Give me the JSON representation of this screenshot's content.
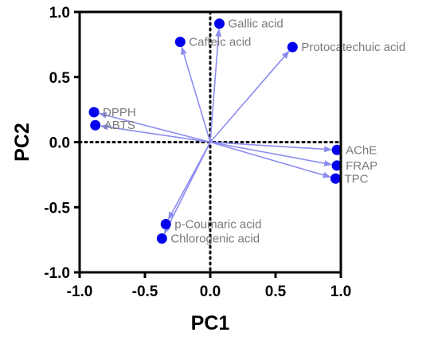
{
  "chart_data": {
    "type": "scatter",
    "title": "",
    "xlabel": "PC1",
    "ylabel": "PC2",
    "xlim": [
      -1.0,
      1.0
    ],
    "ylim": [
      -1.0,
      1.0
    ],
    "xticks": [
      "-1.0",
      "-0.5",
      "0.0",
      "0.5",
      "1.0"
    ],
    "yticks": [
      "1.0",
      "0.5",
      "0.0",
      "-0.5",
      "-1.0"
    ],
    "grid": false,
    "reference_lines": {
      "x": 0,
      "y": 0,
      "style": "dotted"
    },
    "vectors_from_origin": true,
    "point_color": "#0000ee",
    "arrow_color": "#8c8cf0",
    "label_color": "#7a7a7a",
    "points": [
      {
        "label": "Gallic acid",
        "x": 0.07,
        "y": 0.91,
        "label_side": "right"
      },
      {
        "label": "Caffeic acid",
        "x": -0.23,
        "y": 0.77,
        "label_side": "right"
      },
      {
        "label": "Protocatechuic acid",
        "x": 0.63,
        "y": 0.73,
        "label_side": "right"
      },
      {
        "label": "DPPH",
        "x": -0.89,
        "y": 0.23,
        "label_side": "right"
      },
      {
        "label": "ABTS",
        "x": -0.88,
        "y": 0.13,
        "label_side": "right"
      },
      {
        "label": "AChE",
        "x": 0.97,
        "y": -0.06,
        "label_side": "right"
      },
      {
        "label": "FRAP",
        "x": 0.97,
        "y": -0.18,
        "label_side": "right"
      },
      {
        "label": "TPC",
        "x": 0.96,
        "y": -0.28,
        "label_side": "right"
      },
      {
        "label": "p-Coumaric acid",
        "x": -0.34,
        "y": -0.63,
        "label_side": "right"
      },
      {
        "label": "Chlorogenic acid",
        "x": -0.37,
        "y": -0.74,
        "label_side": "right"
      }
    ]
  }
}
